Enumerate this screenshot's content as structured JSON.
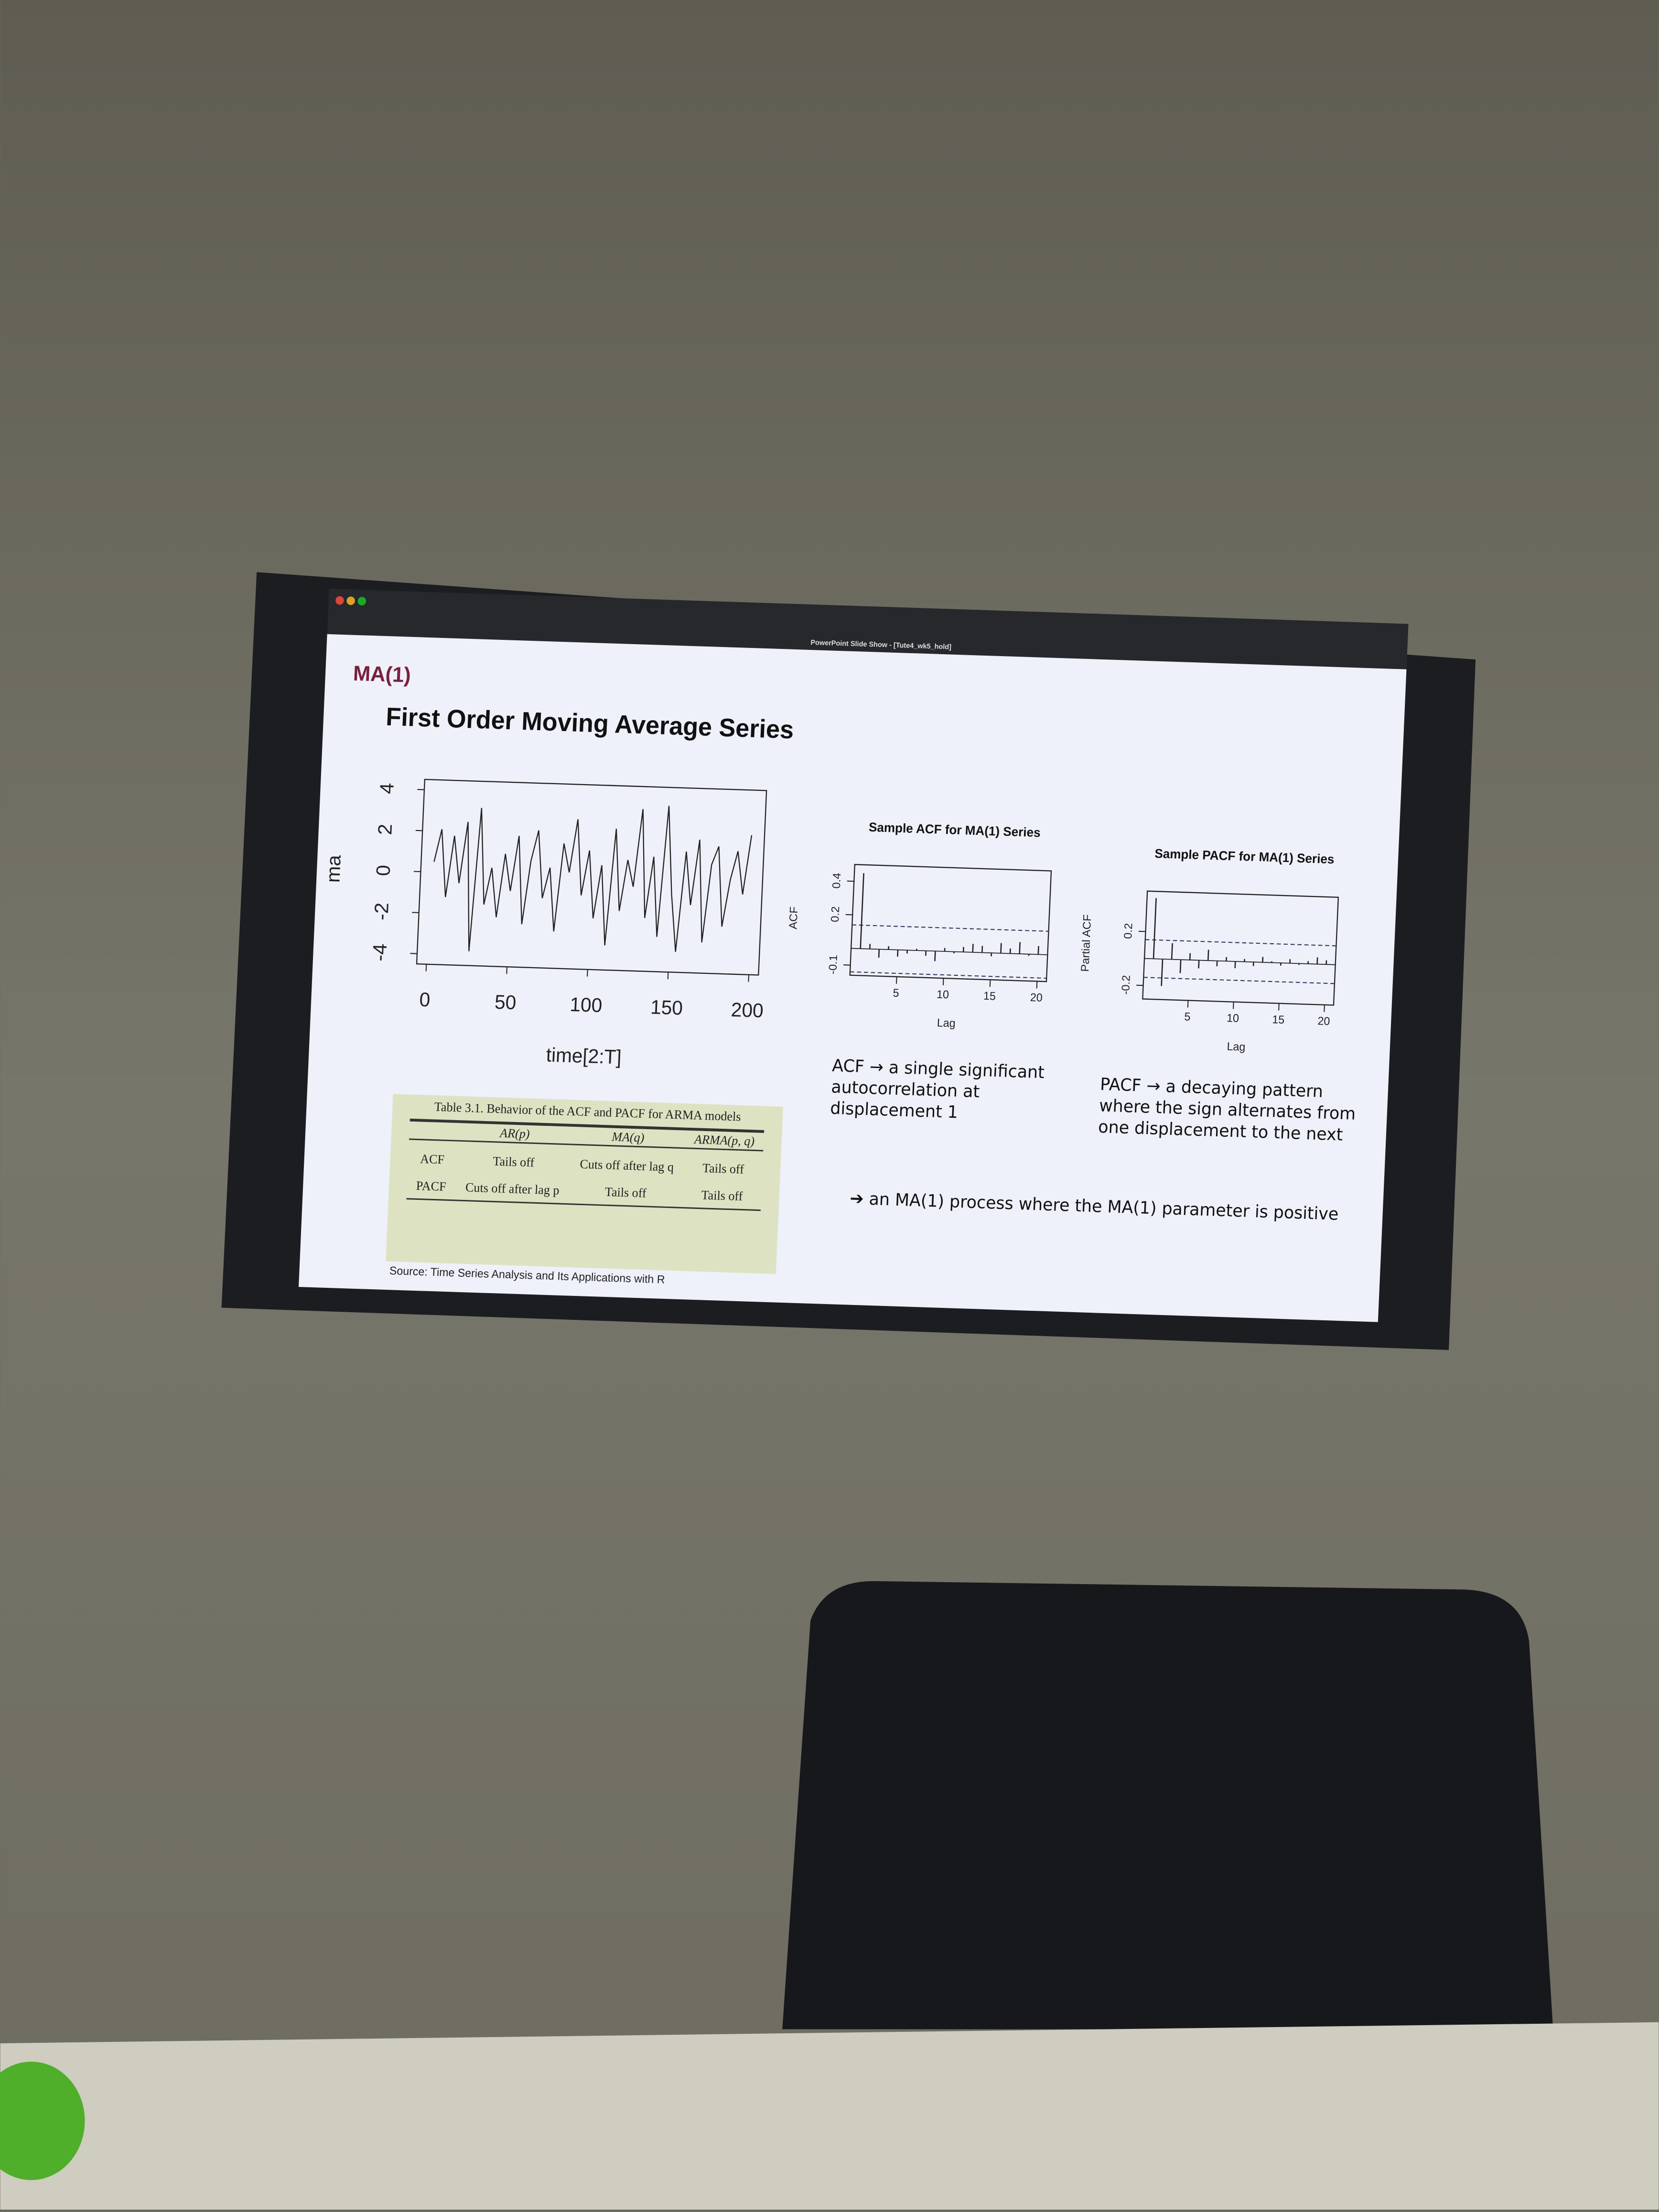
{
  "window_title": "PowerPoint Slide Show - [Tute4_wk5_hold]",
  "slide": {
    "section": "MA(1)",
    "title": "First Order Moving Average Series",
    "acf_note": "ACF → a single significant autocorrelation at displacement 1",
    "pacf_note": "PACF → a decaying pattern where the sign alternates from one displacement to the next",
    "conclusion": "➔ an MA(1) process where the MA(1) parameter is positive",
    "source": "Source: Time Series Analysis and Its Applications with R"
  },
  "table": {
    "title": "Table 3.1. Behavior of the ACF and PACF for ARMA models",
    "header": [
      "AR(p)",
      "MA(q)",
      "ARMA(p, q)"
    ],
    "rows": [
      [
        "ACF",
        "Tails off",
        "Cuts off after lag q",
        "Tails off"
      ],
      [
        "PACF",
        "Cuts off after lag p",
        "Tails off",
        "Tails off"
      ]
    ]
  },
  "chart_data": [
    {
      "type": "line",
      "x_label": "time[2:T]",
      "y_label": "ma",
      "color": "#222222",
      "x": [
        2,
        6,
        10,
        14,
        18,
        22,
        26,
        30,
        34,
        38,
        42,
        46,
        50,
        54,
        58,
        62,
        66,
        70,
        74,
        78,
        82,
        86,
        90,
        94,
        98,
        102,
        106,
        110,
        114,
        118,
        122,
        126,
        130,
        134,
        138,
        142,
        146,
        150,
        154,
        158,
        162,
        166,
        170,
        174,
        178,
        182,
        186,
        190,
        194,
        198
      ],
      "values": [
        0.5,
        2.1,
        -1.2,
        1.8,
        -0.5,
        2.5,
        -3.8,
        3.2,
        -1.5,
        0.3,
        -2.1,
        1.0,
        -0.8,
        1.9,
        -2.4,
        0.7,
        2.2,
        -1.1,
        0.4,
        -2.7,
        1.6,
        0.2,
        2.8,
        -0.9,
        1.3,
        -2.0,
        0.6,
        -3.3,
        2.4,
        -1.6,
        0.9,
        -0.4,
        3.4,
        -1.9,
        1.1,
        -2.8,
        3.6,
        -0.7,
        -3.5,
        1.4,
        -1.2,
        2.0,
        -3.0,
        0.8,
        1.7,
        -2.2,
        0.1,
        1.5,
        -0.6,
        2.3
      ],
      "xlim": [
        -6,
        206
      ],
      "ylim": [
        -4.5,
        4.5
      ],
      "xticks": [
        0,
        50,
        100,
        150,
        200
      ],
      "yticks": [
        -4,
        -2,
        0,
        2,
        4
      ]
    },
    {
      "type": "stem",
      "title": "Sample ACF for MA(1) Series",
      "x_label": "Lag",
      "y_label": "ACF",
      "color": "#222222",
      "x": [
        1,
        2,
        3,
        4,
        5,
        6,
        7,
        8,
        9,
        10,
        11,
        12,
        13,
        14,
        15,
        16,
        17,
        18,
        19,
        20
      ],
      "values": [
        0.45,
        0.03,
        -0.05,
        0.02,
        -0.04,
        -0.02,
        0.01,
        -0.03,
        -0.06,
        0.02,
        -0.01,
        0.03,
        0.05,
        0.04,
        -0.02,
        0.06,
        0.03,
        0.07,
        -0.01,
        0.05
      ],
      "ci": [
        -0.14,
        0.14
      ],
      "xlim": [
        0,
        21
      ],
      "ylim": [
        -0.16,
        0.5
      ],
      "xticks": [
        5,
        10,
        15,
        20
      ],
      "yticks": [
        -0.1,
        0.2,
        0.4
      ]
    },
    {
      "type": "stem",
      "title": "Sample PACF for MA(1) Series",
      "x_label": "Lag",
      "y_label": "Partial ACF",
      "color": "#222222",
      "x": [
        1,
        2,
        3,
        4,
        5,
        6,
        7,
        8,
        9,
        10,
        11,
        12,
        13,
        14,
        15,
        16,
        17,
        18,
        19,
        20
      ],
      "values": [
        0.45,
        -0.2,
        0.12,
        -0.1,
        0.05,
        -0.06,
        0.08,
        -0.04,
        0.03,
        -0.05,
        0.02,
        -0.03,
        0.04,
        0.01,
        -0.02,
        0.03,
        -0.01,
        0.02,
        0.05,
        0.03
      ],
      "ci": [
        -0.14,
        0.14
      ],
      "xlim": [
        0,
        21
      ],
      "ylim": [
        -0.3,
        0.5
      ],
      "xticks": [
        5,
        10,
        15,
        20
      ],
      "yticks": [
        -0.2,
        0.2
      ]
    }
  ]
}
